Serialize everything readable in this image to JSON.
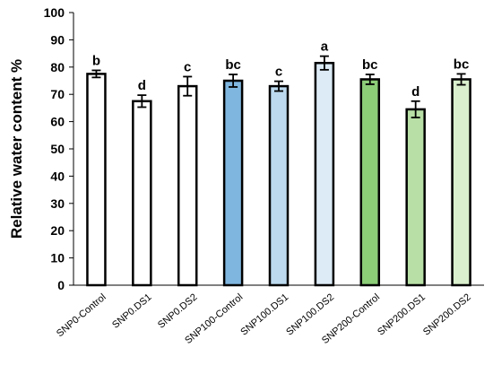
{
  "chart_data": {
    "type": "bar",
    "categories": [
      "SNP0-Control",
      "SNP0.DS1",
      "SNP0.DS2",
      "SNP100-Control",
      "SNP100.DS1",
      "SNP100.DS2",
      "SNP200-Control",
      "SNP200.DS1",
      "SNP200.DS2"
    ],
    "values": [
      77.5,
      67.5,
      73,
      75,
      73,
      81.5,
      75.5,
      64.5,
      75.5
    ],
    "errors": [
      1.3,
      2.2,
      3.5,
      2.3,
      1.8,
      2.5,
      1.8,
      3.0,
      2.0
    ],
    "significance": [
      "b",
      "d",
      "c",
      "bc",
      "c",
      "a",
      "bc",
      "d",
      "bc"
    ],
    "bar_colors": [
      "#ffffff",
      "#ffffff",
      "#ffffff",
      "#7fb6df",
      "#bcd9ee",
      "#dcebf6",
      "#8ccd78",
      "#b8e0a6",
      "#d9efcd"
    ],
    "title": "",
    "xlabel": "",
    "ylabel": "Relative water content %",
    "ylim": [
      0,
      100
    ],
    "yticks": [
      "0",
      "10",
      "20",
      "30",
      "40",
      "50",
      "60",
      "70",
      "80",
      "90",
      "100"
    ],
    "grid": false,
    "legend": "none"
  }
}
